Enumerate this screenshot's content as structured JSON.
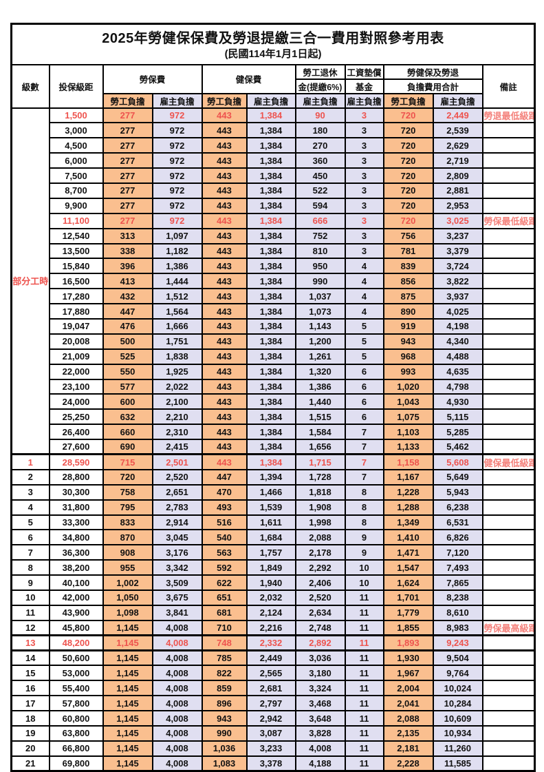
{
  "title": "2025年勞健保保費及勞退提繳三合一費用對照參考用表",
  "subtitle": "(民國114年1月1日起)",
  "colors": {
    "employee_bg": "#FABF8F",
    "employer_bg": "#E0DFF1",
    "highlight_text": "#EE534E",
    "remark_text": "#F4827C",
    "border": "#000000"
  },
  "header": {
    "level": "級數",
    "bracket": "投保級距",
    "labor": "勞保費",
    "health": "健保費",
    "pension_l1": "勞工退休",
    "pension_l2": "金(提繳6%)",
    "wage_l1": "工資墊償",
    "wage_l2": "基金",
    "total_l1": "勞健保及勞退",
    "total_l2": "負擔費用合計",
    "remark": "備註",
    "employee": "勞工負擔",
    "employer": "雇主負擔"
  },
  "table": {
    "fields": [
      "level",
      "insured_bracket",
      "labor_employee",
      "labor_employer",
      "health_employee",
      "health_employer",
      "pension_employer",
      "wage_fund_employer",
      "total_employee",
      "total_employer",
      "remark"
    ],
    "part_time": {
      "label": "部分工時",
      "row_span": 23
    },
    "red_rows": [
      0,
      7,
      23,
      35
    ],
    "thick_top_rows": [
      23,
      35,
      36
    ],
    "rows": [
      [
        "",
        "1,500",
        "277",
        "972",
        "443",
        "1,384",
        "90",
        "3",
        "720",
        "2,449",
        "勞退最低級距"
      ],
      [
        "",
        "3,000",
        "277",
        "972",
        "443",
        "1,384",
        "180",
        "3",
        "720",
        "2,539",
        ""
      ],
      [
        "",
        "4,500",
        "277",
        "972",
        "443",
        "1,384",
        "270",
        "3",
        "720",
        "2,629",
        ""
      ],
      [
        "",
        "6,000",
        "277",
        "972",
        "443",
        "1,384",
        "360",
        "3",
        "720",
        "2,719",
        ""
      ],
      [
        "",
        "7,500",
        "277",
        "972",
        "443",
        "1,384",
        "450",
        "3",
        "720",
        "2,809",
        ""
      ],
      [
        "",
        "8,700",
        "277",
        "972",
        "443",
        "1,384",
        "522",
        "3",
        "720",
        "2,881",
        ""
      ],
      [
        "",
        "9,900",
        "277",
        "972",
        "443",
        "1,384",
        "594",
        "3",
        "720",
        "2,953",
        ""
      ],
      [
        "",
        "11,100",
        "277",
        "972",
        "443",
        "1,384",
        "666",
        "3",
        "720",
        "3,025",
        "勞保最低級距"
      ],
      [
        "",
        "12,540",
        "313",
        "1,097",
        "443",
        "1,384",
        "752",
        "3",
        "756",
        "3,237",
        ""
      ],
      [
        "",
        "13,500",
        "338",
        "1,182",
        "443",
        "1,384",
        "810",
        "3",
        "781",
        "3,379",
        ""
      ],
      [
        "",
        "15,840",
        "396",
        "1,386",
        "443",
        "1,384",
        "950",
        "4",
        "839",
        "3,724",
        ""
      ],
      [
        "",
        "16,500",
        "413",
        "1,444",
        "443",
        "1,384",
        "990",
        "4",
        "856",
        "3,822",
        ""
      ],
      [
        "",
        "17,280",
        "432",
        "1,512",
        "443",
        "1,384",
        "1,037",
        "4",
        "875",
        "3,937",
        ""
      ],
      [
        "",
        "17,880",
        "447",
        "1,564",
        "443",
        "1,384",
        "1,073",
        "4",
        "890",
        "4,025",
        ""
      ],
      [
        "",
        "19,047",
        "476",
        "1,666",
        "443",
        "1,384",
        "1,143",
        "5",
        "919",
        "4,198",
        ""
      ],
      [
        "",
        "20,008",
        "500",
        "1,751",
        "443",
        "1,384",
        "1,200",
        "5",
        "943",
        "4,340",
        ""
      ],
      [
        "",
        "21,009",
        "525",
        "1,838",
        "443",
        "1,384",
        "1,261",
        "5",
        "968",
        "4,488",
        ""
      ],
      [
        "",
        "22,000",
        "550",
        "1,925",
        "443",
        "1,384",
        "1,320",
        "6",
        "993",
        "4,635",
        ""
      ],
      [
        "",
        "23,100",
        "577",
        "2,022",
        "443",
        "1,384",
        "1,386",
        "6",
        "1,020",
        "4,798",
        ""
      ],
      [
        "",
        "24,000",
        "600",
        "2,100",
        "443",
        "1,384",
        "1,440",
        "6",
        "1,043",
        "4,930",
        ""
      ],
      [
        "",
        "25,250",
        "632",
        "2,210",
        "443",
        "1,384",
        "1,515",
        "6",
        "1,075",
        "5,115",
        ""
      ],
      [
        "",
        "26,400",
        "660",
        "2,310",
        "443",
        "1,384",
        "1,584",
        "7",
        "1,103",
        "5,285",
        ""
      ],
      [
        "",
        "27,600",
        "690",
        "2,415",
        "443",
        "1,384",
        "1,656",
        "7",
        "1,133",
        "5,462",
        ""
      ],
      [
        "1",
        "28,590",
        "715",
        "2,501",
        "443",
        "1,384",
        "1,715",
        "7",
        "1,158",
        "5,608",
        "健保最低級距"
      ],
      [
        "2",
        "28,800",
        "720",
        "2,520",
        "447",
        "1,394",
        "1,728",
        "7",
        "1,167",
        "5,649",
        ""
      ],
      [
        "3",
        "30,300",
        "758",
        "2,651",
        "470",
        "1,466",
        "1,818",
        "8",
        "1,228",
        "5,943",
        ""
      ],
      [
        "4",
        "31,800",
        "795",
        "2,783",
        "493",
        "1,539",
        "1,908",
        "8",
        "1,288",
        "6,238",
        ""
      ],
      [
        "5",
        "33,300",
        "833",
        "2,914",
        "516",
        "1,611",
        "1,998",
        "8",
        "1,349",
        "6,531",
        ""
      ],
      [
        "6",
        "34,800",
        "870",
        "3,045",
        "540",
        "1,684",
        "2,088",
        "9",
        "1,410",
        "6,826",
        ""
      ],
      [
        "7",
        "36,300",
        "908",
        "3,176",
        "563",
        "1,757",
        "2,178",
        "9",
        "1,471",
        "7,120",
        ""
      ],
      [
        "8",
        "38,200",
        "955",
        "3,342",
        "592",
        "1,849",
        "2,292",
        "10",
        "1,547",
        "7,493",
        ""
      ],
      [
        "9",
        "40,100",
        "1,002",
        "3,509",
        "622",
        "1,940",
        "2,406",
        "10",
        "1,624",
        "7,865",
        ""
      ],
      [
        "10",
        "42,000",
        "1,050",
        "3,675",
        "651",
        "2,032",
        "2,520",
        "11",
        "1,701",
        "8,238",
        ""
      ],
      [
        "11",
        "43,900",
        "1,098",
        "3,841",
        "681",
        "2,124",
        "2,634",
        "11",
        "1,779",
        "8,610",
        ""
      ],
      [
        "12",
        "45,800",
        "1,145",
        "4,008",
        "710",
        "2,216",
        "2,748",
        "11",
        "1,855",
        "8,983",
        "勞保最高級距"
      ],
      [
        "13",
        "48,200",
        "1,145",
        "4,008",
        "748",
        "2,332",
        "2,892",
        "11",
        "1,893",
        "9,243",
        ""
      ],
      [
        "14",
        "50,600",
        "1,145",
        "4,008",
        "785",
        "2,449",
        "3,036",
        "11",
        "1,930",
        "9,504",
        ""
      ],
      [
        "15",
        "53,000",
        "1,145",
        "4,008",
        "822",
        "2,565",
        "3,180",
        "11",
        "1,967",
        "9,764",
        ""
      ],
      [
        "16",
        "55,400",
        "1,145",
        "4,008",
        "859",
        "2,681",
        "3,324",
        "11",
        "2,004",
        "10,024",
        ""
      ],
      [
        "17",
        "57,800",
        "1,145",
        "4,008",
        "896",
        "2,797",
        "3,468",
        "11",
        "2,041",
        "10,284",
        ""
      ],
      [
        "18",
        "60,800",
        "1,145",
        "4,008",
        "943",
        "2,942",
        "3,648",
        "11",
        "2,088",
        "10,609",
        ""
      ],
      [
        "19",
        "63,800",
        "1,145",
        "4,008",
        "990",
        "3,087",
        "3,828",
        "11",
        "2,135",
        "10,934",
        ""
      ],
      [
        "20",
        "66,800",
        "1,145",
        "4,008",
        "1,036",
        "3,233",
        "4,008",
        "11",
        "2,181",
        "11,260",
        ""
      ],
      [
        "21",
        "69,800",
        "1,145",
        "4,008",
        "1,083",
        "3,378",
        "4,188",
        "11",
        "2,228",
        "11,585",
        ""
      ]
    ]
  }
}
